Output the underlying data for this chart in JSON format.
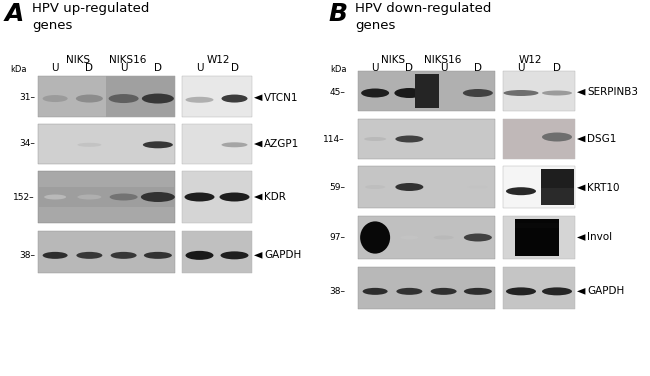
{
  "panel_A_title": "HPV up-regulated\ngenes",
  "panel_B_title": "HPV down-regulated\ngenes",
  "panel_A_label": "A",
  "panel_B_label": "B",
  "bg_color": "#ffffff",
  "kda_labels_A": [
    "31",
    "34",
    "152",
    "38"
  ],
  "kda_labels_B": [
    "45",
    "114",
    "59",
    "97",
    "38"
  ],
  "gene_labels_A": [
    "VTCN1",
    "AZGP1",
    "KDR",
    "GAPDH"
  ],
  "gene_labels_B": [
    "SERPINB3",
    "DSG1",
    "KRT10",
    "Invol",
    "GAPDH"
  ]
}
